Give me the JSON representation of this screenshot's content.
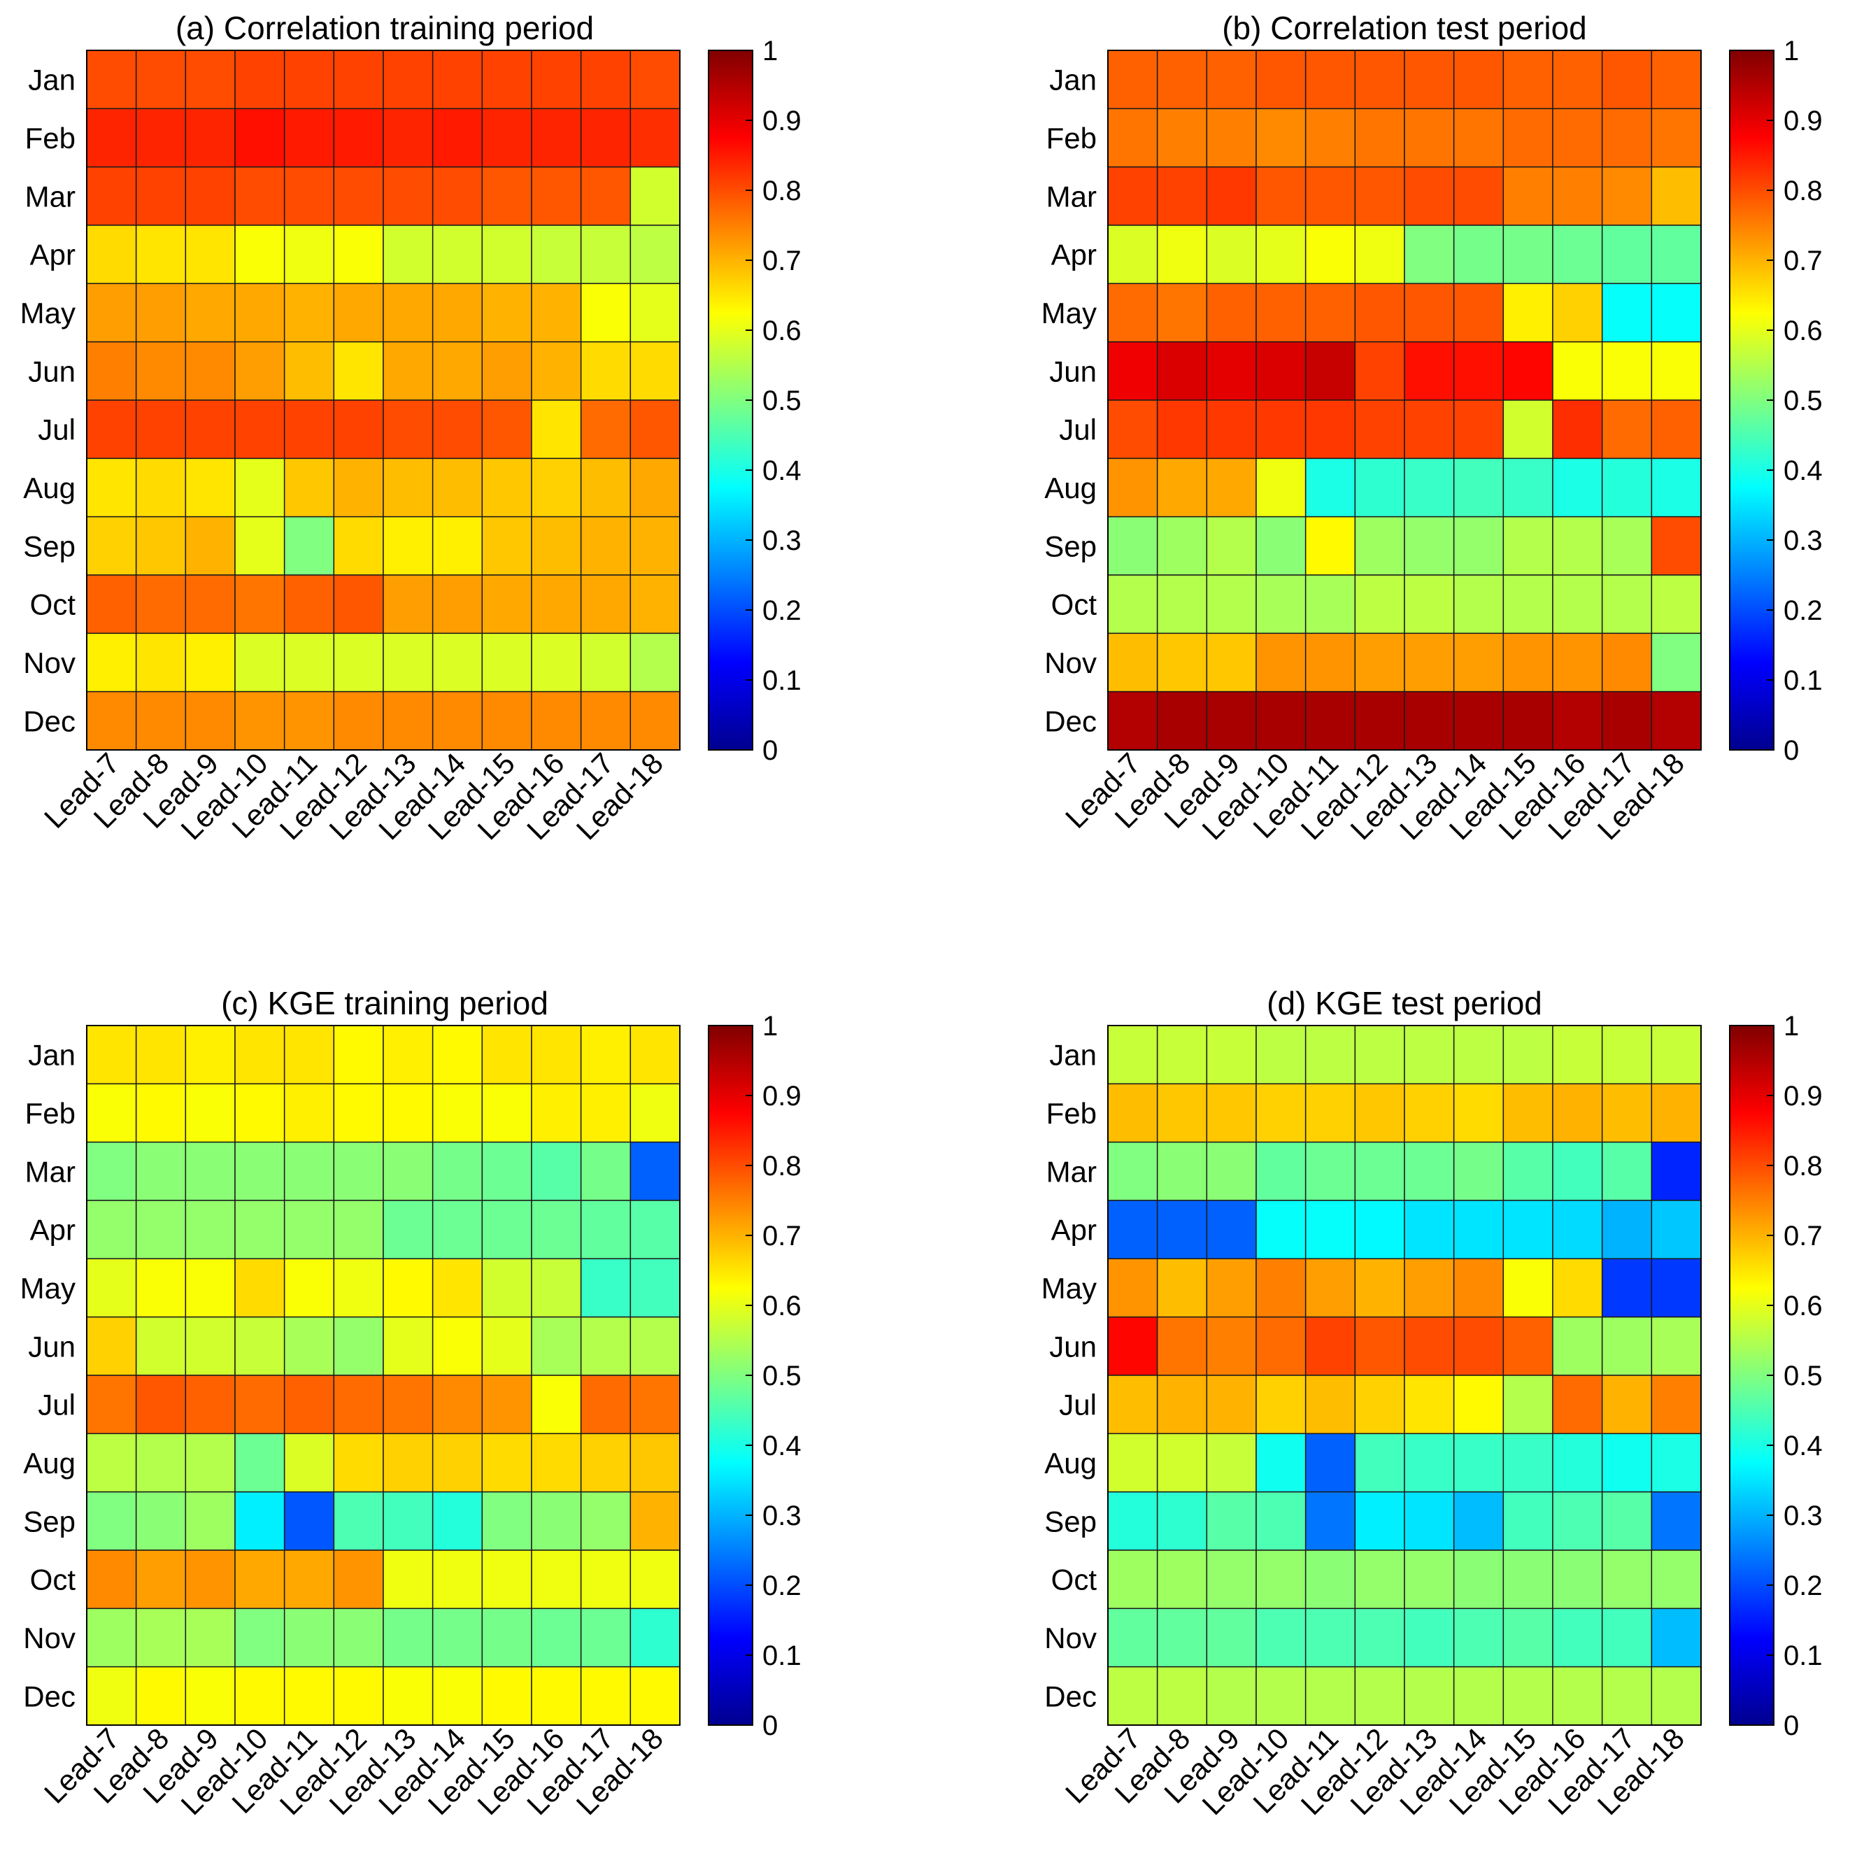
{
  "chart_data": [
    {
      "type": "heatmap",
      "title": "(a) Correlation training period",
      "rows": [
        "Jan",
        "Feb",
        "Mar",
        "Apr",
        "May",
        "Jun",
        "Jul",
        "Aug",
        "Sep",
        "Oct",
        "Nov",
        "Dec"
      ],
      "columns": [
        "Lead-7",
        "Lead-8",
        "Lead-9",
        "Lead-10",
        "Lead-11",
        "Lead-12",
        "Lead-13",
        "Lead-14",
        "Lead-15",
        "Lead-16",
        "Lead-17",
        "Lead-18"
      ],
      "values": [
        [
          0.8,
          0.8,
          0.8,
          0.81,
          0.81,
          0.81,
          0.81,
          0.81,
          0.81,
          0.81,
          0.81,
          0.8
        ],
        [
          0.84,
          0.84,
          0.84,
          0.86,
          0.85,
          0.85,
          0.84,
          0.85,
          0.84,
          0.84,
          0.84,
          0.83
        ],
        [
          0.81,
          0.81,
          0.81,
          0.8,
          0.8,
          0.8,
          0.8,
          0.8,
          0.79,
          0.79,
          0.79,
          0.58
        ],
        [
          0.66,
          0.65,
          0.65,
          0.62,
          0.61,
          0.62,
          0.58,
          0.58,
          0.58,
          0.57,
          0.57,
          0.56
        ],
        [
          0.72,
          0.72,
          0.71,
          0.71,
          0.7,
          0.71,
          0.71,
          0.71,
          0.7,
          0.7,
          0.62,
          0.6
        ],
        [
          0.75,
          0.74,
          0.74,
          0.72,
          0.69,
          0.65,
          0.71,
          0.71,
          0.72,
          0.7,
          0.66,
          0.66
        ],
        [
          0.81,
          0.81,
          0.81,
          0.81,
          0.81,
          0.81,
          0.8,
          0.8,
          0.79,
          0.65,
          0.77,
          0.79
        ],
        [
          0.65,
          0.66,
          0.65,
          0.6,
          0.68,
          0.7,
          0.69,
          0.69,
          0.68,
          0.67,
          0.69,
          0.71
        ],
        [
          0.67,
          0.68,
          0.7,
          0.6,
          0.5,
          0.66,
          0.64,
          0.64,
          0.68,
          0.69,
          0.7,
          0.7
        ],
        [
          0.78,
          0.77,
          0.77,
          0.76,
          0.78,
          0.79,
          0.72,
          0.72,
          0.71,
          0.71,
          0.71,
          0.7
        ],
        [
          0.64,
          0.65,
          0.64,
          0.59,
          0.59,
          0.59,
          0.59,
          0.59,
          0.59,
          0.59,
          0.58,
          0.55
        ],
        [
          0.74,
          0.74,
          0.74,
          0.73,
          0.73,
          0.74,
          0.74,
          0.74,
          0.74,
          0.74,
          0.74,
          0.74
        ]
      ],
      "colorbar": {
        "min": 0,
        "max": 1,
        "ticks": [
          "0",
          "0.1",
          "0.2",
          "0.3",
          "0.4",
          "0.5",
          "0.6",
          "0.7",
          "0.8",
          "0.9",
          "1"
        ]
      }
    },
    {
      "type": "heatmap",
      "title": "(b) Correlation test period",
      "rows": [
        "Jan",
        "Feb",
        "Mar",
        "Apr",
        "May",
        "Jun",
        "Jul",
        "Aug",
        "Sep",
        "Oct",
        "Nov",
        "Dec"
      ],
      "columns": [
        "Lead-7",
        "Lead-8",
        "Lead-9",
        "Lead-10",
        "Lead-11",
        "Lead-12",
        "Lead-13",
        "Lead-14",
        "Lead-15",
        "Lead-16",
        "Lead-17",
        "Lead-18"
      ],
      "values": [
        [
          0.78,
          0.78,
          0.78,
          0.79,
          0.79,
          0.79,
          0.79,
          0.79,
          0.78,
          0.78,
          0.79,
          0.78
        ],
        [
          0.76,
          0.75,
          0.75,
          0.74,
          0.75,
          0.76,
          0.76,
          0.76,
          0.77,
          0.77,
          0.77,
          0.76
        ],
        [
          0.81,
          0.81,
          0.82,
          0.79,
          0.79,
          0.79,
          0.8,
          0.8,
          0.75,
          0.75,
          0.74,
          0.69
        ],
        [
          0.59,
          0.61,
          0.59,
          0.6,
          0.62,
          0.61,
          0.5,
          0.49,
          0.49,
          0.48,
          0.47,
          0.47
        ],
        [
          0.77,
          0.76,
          0.78,
          0.78,
          0.78,
          0.79,
          0.79,
          0.79,
          0.64,
          0.67,
          0.38,
          0.38
        ],
        [
          0.89,
          0.91,
          0.9,
          0.91,
          0.93,
          0.81,
          0.86,
          0.86,
          0.87,
          0.62,
          0.62,
          0.62
        ],
        [
          0.8,
          0.82,
          0.82,
          0.82,
          0.82,
          0.81,
          0.81,
          0.81,
          0.58,
          0.83,
          0.77,
          0.78
        ],
        [
          0.73,
          0.71,
          0.71,
          0.61,
          0.4,
          0.42,
          0.43,
          0.44,
          0.43,
          0.4,
          0.41,
          0.4
        ],
        [
          0.51,
          0.53,
          0.55,
          0.51,
          0.63,
          0.53,
          0.52,
          0.52,
          0.55,
          0.55,
          0.54,
          0.8
        ],
        [
          0.55,
          0.55,
          0.55,
          0.54,
          0.54,
          0.56,
          0.56,
          0.55,
          0.55,
          0.55,
          0.55,
          0.56
        ],
        [
          0.69,
          0.68,
          0.68,
          0.73,
          0.73,
          0.72,
          0.72,
          0.72,
          0.73,
          0.73,
          0.74,
          0.5
        ],
        [
          0.95,
          0.96,
          0.96,
          0.96,
          0.96,
          0.96,
          0.96,
          0.96,
          0.96,
          0.95,
          0.96,
          0.95
        ]
      ],
      "colorbar": {
        "min": 0,
        "max": 1,
        "ticks": [
          "0",
          "0.1",
          "0.2",
          "0.3",
          "0.4",
          "0.5",
          "0.6",
          "0.7",
          "0.8",
          "0.9",
          "1"
        ]
      }
    },
    {
      "type": "heatmap",
      "title": "(c) KGE training period",
      "rows": [
        "Jan",
        "Feb",
        "Mar",
        "Apr",
        "May",
        "Jun",
        "Jul",
        "Aug",
        "Sep",
        "Oct",
        "Nov",
        "Dec"
      ],
      "columns": [
        "Lead-7",
        "Lead-8",
        "Lead-9",
        "Lead-10",
        "Lead-11",
        "Lead-12",
        "Lead-13",
        "Lead-14",
        "Lead-15",
        "Lead-16",
        "Lead-17",
        "Lead-18"
      ],
      "values": [
        [
          0.65,
          0.65,
          0.64,
          0.65,
          0.65,
          0.63,
          0.64,
          0.63,
          0.65,
          0.65,
          0.64,
          0.65
        ],
        [
          0.62,
          0.63,
          0.62,
          0.63,
          0.64,
          0.63,
          0.63,
          0.62,
          0.62,
          0.64,
          0.64,
          0.61
        ],
        [
          0.5,
          0.51,
          0.51,
          0.51,
          0.51,
          0.51,
          0.51,
          0.49,
          0.48,
          0.46,
          0.49,
          0.22
        ],
        [
          0.52,
          0.52,
          0.52,
          0.52,
          0.52,
          0.52,
          0.48,
          0.48,
          0.48,
          0.48,
          0.47,
          0.46
        ],
        [
          0.6,
          0.62,
          0.62,
          0.66,
          0.62,
          0.61,
          0.63,
          0.65,
          0.58,
          0.57,
          0.43,
          0.44
        ],
        [
          0.67,
          0.58,
          0.58,
          0.57,
          0.54,
          0.52,
          0.6,
          0.62,
          0.6,
          0.54,
          0.55,
          0.55
        ],
        [
          0.76,
          0.79,
          0.78,
          0.77,
          0.78,
          0.77,
          0.76,
          0.74,
          0.73,
          0.62,
          0.77,
          0.76
        ],
        [
          0.56,
          0.55,
          0.55,
          0.48,
          0.59,
          0.66,
          0.67,
          0.67,
          0.66,
          0.66,
          0.67,
          0.68
        ],
        [
          0.5,
          0.51,
          0.53,
          0.36,
          0.21,
          0.45,
          0.44,
          0.41,
          0.5,
          0.51,
          0.52,
          0.7
        ],
        [
          0.74,
          0.72,
          0.73,
          0.71,
          0.71,
          0.73,
          0.61,
          0.61,
          0.61,
          0.61,
          0.61,
          0.61
        ],
        [
          0.53,
          0.54,
          0.54,
          0.5,
          0.51,
          0.51,
          0.49,
          0.49,
          0.49,
          0.48,
          0.48,
          0.42
        ],
        [
          0.61,
          0.63,
          0.62,
          0.63,
          0.63,
          0.63,
          0.62,
          0.62,
          0.63,
          0.63,
          0.63,
          0.63
        ]
      ],
      "colorbar": {
        "min": 0,
        "max": 1,
        "ticks": [
          "0",
          "0.1",
          "0.2",
          "0.3",
          "0.4",
          "0.5",
          "0.6",
          "0.7",
          "0.8",
          "0.9",
          "1"
        ]
      }
    },
    {
      "type": "heatmap",
      "title": "(d) KGE test period",
      "rows": [
        "Jan",
        "Feb",
        "Mar",
        "Apr",
        "May",
        "Jun",
        "Jul",
        "Aug",
        "Sep",
        "Oct",
        "Nov",
        "Dec"
      ],
      "columns": [
        "Lead-7",
        "Lead-8",
        "Lead-9",
        "Lead-10",
        "Lead-11",
        "Lead-12",
        "Lead-13",
        "Lead-14",
        "Lead-15",
        "Lead-16",
        "Lead-17",
        "Lead-18"
      ],
      "values": [
        [
          0.57,
          0.57,
          0.57,
          0.56,
          0.56,
          0.56,
          0.56,
          0.56,
          0.56,
          0.57,
          0.57,
          0.57
        ],
        [
          0.69,
          0.68,
          0.68,
          0.67,
          0.67,
          0.68,
          0.67,
          0.66,
          0.69,
          0.7,
          0.69,
          0.7
        ],
        [
          0.5,
          0.51,
          0.51,
          0.47,
          0.48,
          0.48,
          0.48,
          0.49,
          0.46,
          0.44,
          0.46,
          0.16
        ],
        [
          0.22,
          0.22,
          0.22,
          0.38,
          0.38,
          0.37,
          0.35,
          0.35,
          0.35,
          0.34,
          0.3,
          0.32
        ],
        [
          0.73,
          0.69,
          0.72,
          0.75,
          0.72,
          0.7,
          0.72,
          0.74,
          0.62,
          0.66,
          0.18,
          0.18
        ],
        [
          0.87,
          0.76,
          0.75,
          0.77,
          0.81,
          0.79,
          0.8,
          0.8,
          0.78,
          0.53,
          0.53,
          0.54
        ],
        [
          0.69,
          0.7,
          0.7,
          0.67,
          0.69,
          0.67,
          0.65,
          0.63,
          0.55,
          0.77,
          0.7,
          0.75
        ],
        [
          0.58,
          0.58,
          0.57,
          0.39,
          0.22,
          0.44,
          0.43,
          0.43,
          0.43,
          0.41,
          0.39,
          0.4
        ],
        [
          0.41,
          0.42,
          0.46,
          0.45,
          0.24,
          0.36,
          0.35,
          0.31,
          0.44,
          0.45,
          0.46,
          0.24
        ],
        [
          0.53,
          0.53,
          0.52,
          0.52,
          0.51,
          0.52,
          0.52,
          0.51,
          0.51,
          0.51,
          0.52,
          0.52
        ],
        [
          0.47,
          0.47,
          0.47,
          0.45,
          0.45,
          0.45,
          0.44,
          0.45,
          0.46,
          0.44,
          0.44,
          0.31
        ],
        [
          0.56,
          0.56,
          0.55,
          0.55,
          0.55,
          0.55,
          0.55,
          0.55,
          0.55,
          0.55,
          0.55,
          0.55
        ]
      ],
      "colorbar": {
        "min": 0,
        "max": 1,
        "ticks": [
          "0",
          "0.1",
          "0.2",
          "0.3",
          "0.4",
          "0.5",
          "0.6",
          "0.7",
          "0.8",
          "0.9",
          "1"
        ]
      }
    }
  ],
  "colormap": "jet"
}
